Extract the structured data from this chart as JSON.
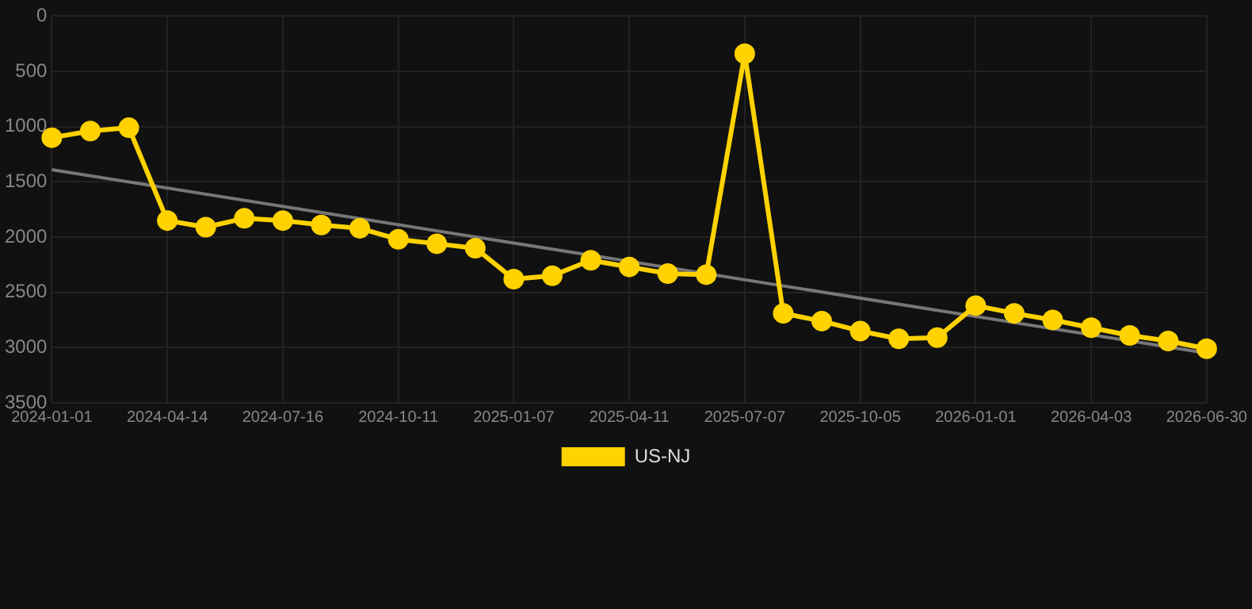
{
  "chart_data": {
    "type": "line",
    "categories": [
      "2024-01-01",
      null,
      null,
      "2024-04-14",
      null,
      null,
      "2024-07-16",
      null,
      null,
      "2024-10-11",
      null,
      null,
      "2025-01-07",
      null,
      null,
      "2025-04-11",
      null,
      null,
      "2025-07-07",
      null,
      null,
      "2025-10-05",
      null,
      null,
      "2026-01-01",
      null,
      null,
      "2026-04-03",
      null,
      null,
      "2026-06-30"
    ],
    "series": [
      {
        "name": "US-NJ",
        "color": "#ffd200",
        "marker": "circle",
        "values": [
          1100,
          1040,
          1010,
          1850,
          1910,
          1830,
          1850,
          1890,
          1920,
          2020,
          2060,
          2100,
          2380,
          2350,
          2210,
          2270,
          2330,
          2340,
          340,
          2690,
          2760,
          2850,
          2920,
          2910,
          2620,
          2690,
          2750,
          2820,
          2890,
          2940,
          3010
        ]
      },
      {
        "color": "#777777",
        "marker": "none",
        "values": [
          1390,
          null,
          null,
          null,
          null,
          null,
          null,
          null,
          null,
          null,
          null,
          null,
          null,
          null,
          null,
          null,
          null,
          null,
          null,
          null,
          null,
          null,
          null,
          null,
          null,
          null,
          null,
          null,
          null,
          null,
          3050
        ]
      }
    ],
    "ylim": [
      3500,
      0
    ],
    "yticks": [
      0,
      500,
      1000,
      1500,
      2000,
      2500,
      3000,
      3500
    ],
    "grid": true,
    "legend": "bottom"
  }
}
